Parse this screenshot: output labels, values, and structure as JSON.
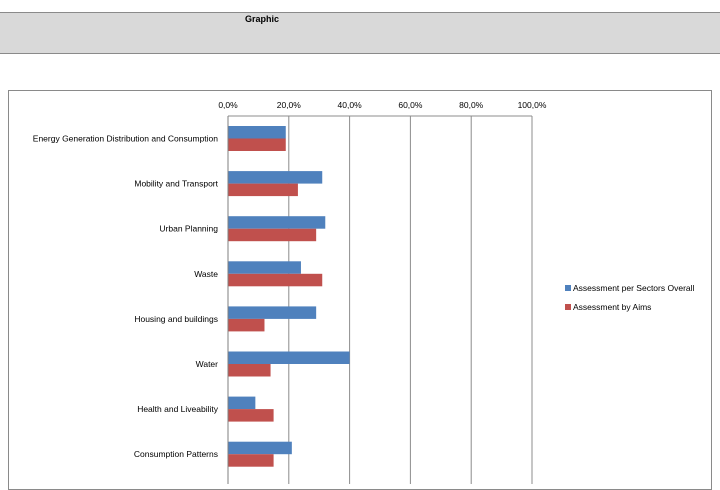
{
  "header": {
    "title": "Graphic"
  },
  "chart_data": {
    "type": "bar",
    "orientation": "horizontal",
    "title": "",
    "xlabel": "",
    "ylabel": "",
    "xlim": [
      0,
      100
    ],
    "x_ticks": [
      "0,0%",
      "20,0%",
      "40,0%",
      "60,0%",
      "80,0%",
      "100,0%"
    ],
    "x_axis_position": "top",
    "grid": true,
    "legend_position": "right",
    "categories": [
      "Energy Generation Distribution and Consumption",
      "Mobility and Transport",
      "Urban Planning",
      "Waste",
      "Housing and buildings",
      "Water",
      "Health and Liveability",
      "Consumption Patterns"
    ],
    "series": [
      {
        "name": "Assessment per Sectors Overall",
        "color": "#4f81bd",
        "values": [
          19,
          31,
          32,
          24,
          29,
          40,
          9,
          21
        ]
      },
      {
        "name": "Assessment by Aims",
        "color": "#c0504d",
        "values": [
          19,
          23,
          29,
          31,
          12,
          14,
          15,
          15
        ]
      }
    ]
  }
}
